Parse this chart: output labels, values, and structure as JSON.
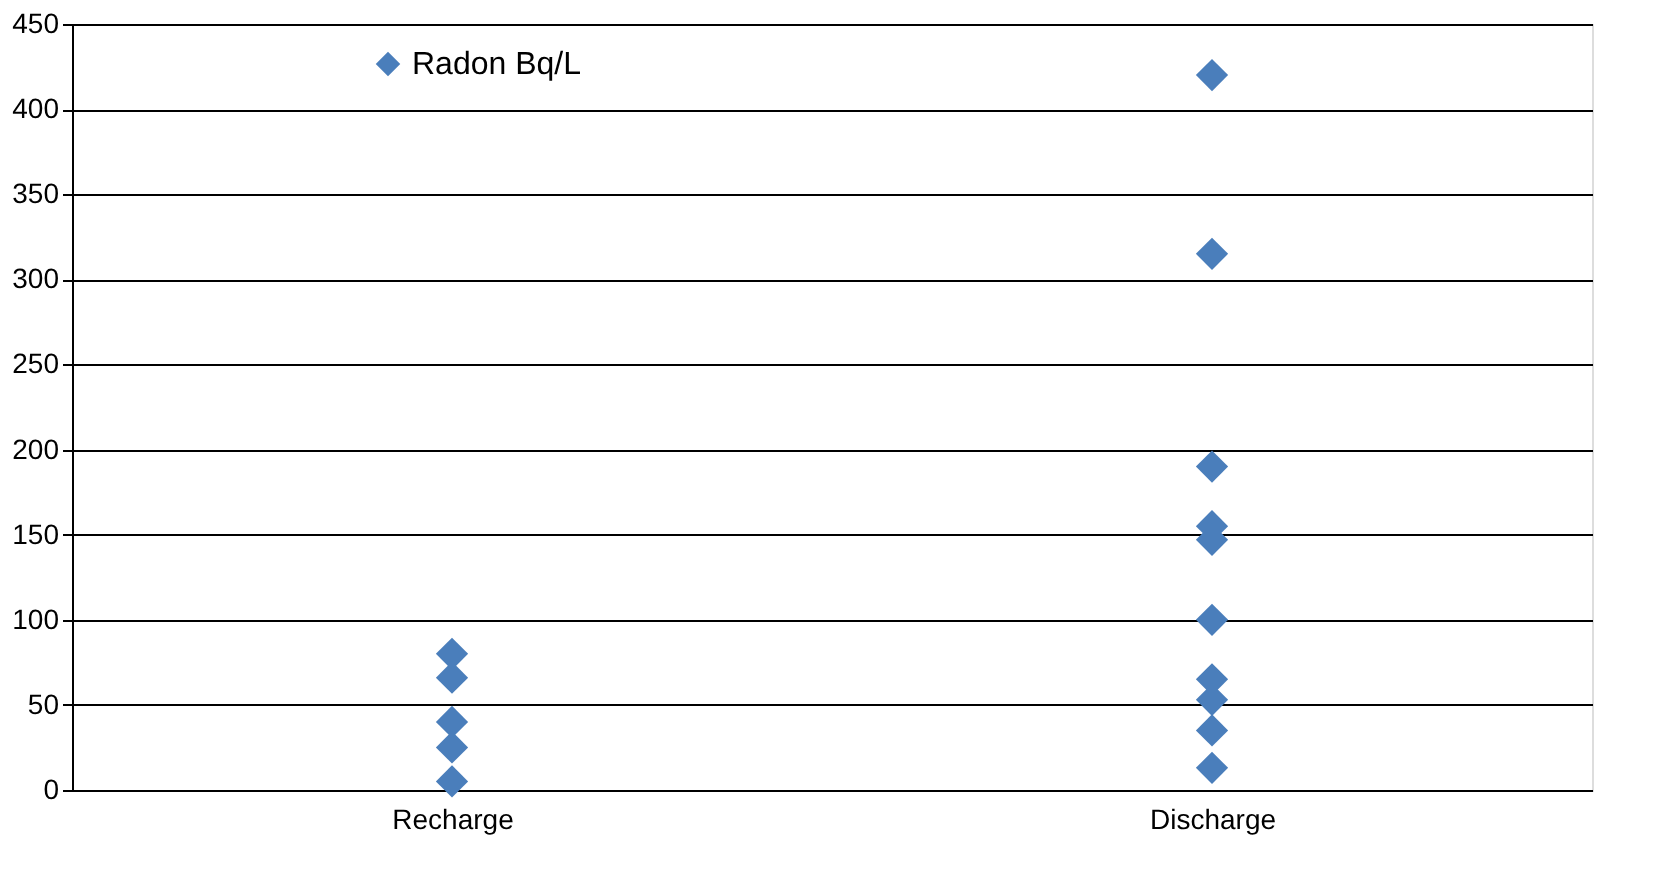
{
  "chart_data": {
    "type": "scatter",
    "categories": [
      "Recharge",
      "Discharge"
    ],
    "series": [
      {
        "name": "Radon Bq/L",
        "color": "#4a7ebb",
        "x": [
          "Recharge",
          "Recharge",
          "Recharge",
          "Recharge",
          "Recharge",
          "Discharge",
          "Discharge",
          "Discharge",
          "Discharge",
          "Discharge",
          "Discharge",
          "Discharge",
          "Discharge",
          "Discharge",
          "Discharge"
        ],
        "values": [
          80,
          66,
          40,
          25,
          5,
          420,
          315,
          190,
          155,
          147,
          100,
          65,
          53,
          35,
          13
        ]
      }
    ],
    "ylim": [
      0,
      450
    ],
    "yticks": [
      0,
      50,
      100,
      150,
      200,
      250,
      300,
      350,
      400,
      450
    ],
    "grid": "y",
    "legend": "top left",
    "marker": "diamond"
  }
}
